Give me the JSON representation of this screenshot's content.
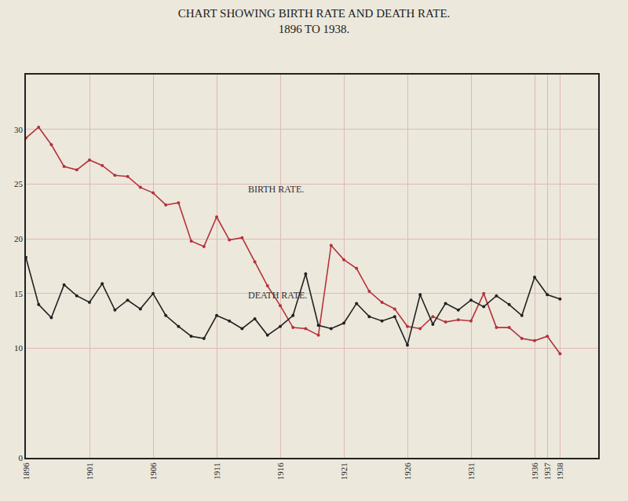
{
  "chart_data": {
    "type": "line",
    "title": "CHART SHOWING BIRTH RATE AND DEATH RATE.",
    "subtitle": "1896 TO 1938.",
    "x": [
      1896,
      1897,
      1898,
      1899,
      1900,
      1901,
      1902,
      1903,
      1904,
      1905,
      1906,
      1907,
      1908,
      1909,
      1910,
      1911,
      1912,
      1913,
      1914,
      1915,
      1916,
      1917,
      1918,
      1919,
      1920,
      1921,
      1922,
      1923,
      1924,
      1925,
      1926,
      1927,
      1928,
      1929,
      1930,
      1931,
      1932,
      1933,
      1934,
      1935,
      1936,
      1937,
      1938
    ],
    "series": [
      {
        "name": "BIRTH RATE.",
        "color": "#b5323a",
        "marker": "circle",
        "values": [
          29.2,
          30.2,
          28.6,
          26.6,
          26.3,
          27.2,
          26.7,
          25.8,
          25.7,
          24.7,
          24.2,
          23.1,
          23.3,
          19.8,
          19.3,
          22.0,
          19.9,
          20.1,
          17.9,
          15.7,
          13.9,
          11.9,
          11.8,
          11.2,
          19.4,
          18.1,
          17.3,
          15.2,
          14.2,
          13.6,
          12.0,
          11.8,
          12.9,
          12.4,
          12.6,
          12.5,
          15.0,
          11.9,
          11.9,
          10.9,
          10.7,
          11.1,
          9.5
        ]
      },
      {
        "name": "DEATH RATE.",
        "color": "#222222",
        "marker": "circle",
        "values": [
          18.3,
          14.0,
          12.8,
          15.8,
          14.8,
          14.2,
          15.9,
          13.5,
          14.4,
          13.6,
          15.0,
          13.0,
          12.0,
          11.1,
          10.9,
          13.0,
          12.5,
          11.8,
          12.7,
          11.2,
          12.0,
          13.0,
          16.8,
          12.1,
          11.8,
          12.3,
          14.1,
          12.9,
          12.5,
          12.9,
          10.3,
          14.9,
          12.2,
          14.1,
          13.5,
          14.4,
          13.8,
          14.8,
          14.0,
          13.0,
          16.5,
          14.9,
          14.5
        ]
      }
    ],
    "xlim": [
      1896,
      1941
    ],
    "xticks": [
      1896,
      1901,
      1906,
      1911,
      1916,
      1921,
      1926,
      1931,
      1936,
      1937,
      1938
    ],
    "ylim": [
      0,
      35
    ],
    "yticks": [
      0,
      10,
      15,
      20,
      25,
      30
    ],
    "grid": true
  }
}
